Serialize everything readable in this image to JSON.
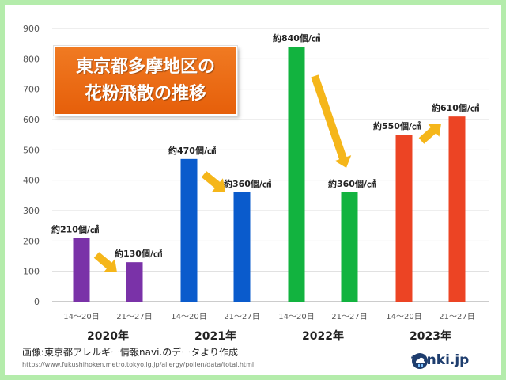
{
  "title": {
    "line1": "東京都多摩地区の",
    "line2": "花粉飛散の推移"
  },
  "caption": "画像:東京都アレルギー情報navi.のデータより作成",
  "source_url": "https://www.fukushihoken.metro.tokyo.lg.jp/allergy/pollen/data/total.html",
  "logo": {
    "text": "tenki.jp",
    "icon": "tenki-jp-logo-icon"
  },
  "colors": {
    "frame": "#b4ecab",
    "title_bg": "#ee6e17",
    "arrow": "#f5b61a",
    "2020": "#7a32a8",
    "2021": "#0a5bcc",
    "2022": "#12b33f",
    "2023": "#ec4424"
  },
  "chart_data": {
    "type": "bar",
    "ylim": [
      0,
      900
    ],
    "yticks": [
      0,
      100,
      200,
      300,
      400,
      500,
      600,
      700,
      800,
      900
    ],
    "grid": true,
    "unit": "個/㎠",
    "groups": [
      {
        "year": "2020年",
        "color": "#7a32a8",
        "bars": [
          {
            "period": "14～20日",
            "value": 210,
            "label": "約210個/㎠"
          },
          {
            "period": "21～27日",
            "value": 130,
            "label": "約130個/㎠"
          }
        ]
      },
      {
        "year": "2021年",
        "color": "#0a5bcc",
        "bars": [
          {
            "period": "14～20日",
            "value": 470,
            "label": "約470個/㎠"
          },
          {
            "period": "21～27日",
            "value": 360,
            "label": "約360個/㎠"
          }
        ]
      },
      {
        "year": "2022年",
        "color": "#12b33f",
        "bars": [
          {
            "period": "14～20日",
            "value": 840,
            "label": "約840個/㎠"
          },
          {
            "period": "21～27日",
            "value": 360,
            "label": "約360個/㎠"
          }
        ]
      },
      {
        "year": "2023年",
        "color": "#ec4424",
        "bars": [
          {
            "period": "14～20日",
            "value": 550,
            "label": "約550個/㎠"
          },
          {
            "period": "21～27日",
            "value": 610,
            "label": "約610個/㎠"
          }
        ]
      }
    ]
  }
}
